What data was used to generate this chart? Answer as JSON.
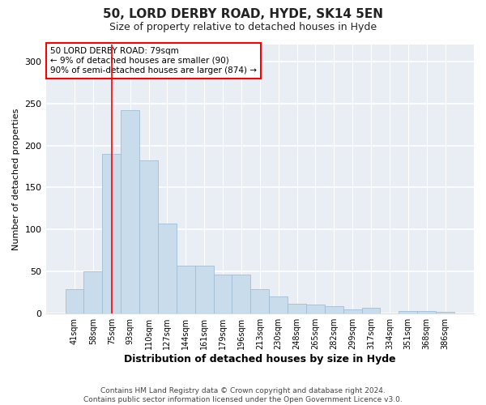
{
  "title1": "50, LORD DERBY ROAD, HYDE, SK14 5EN",
  "title2": "Size of property relative to detached houses in Hyde",
  "xlabel": "Distribution of detached houses by size in Hyde",
  "ylabel": "Number of detached properties",
  "footer1": "Contains HM Land Registry data © Crown copyright and database right 2024.",
  "footer2": "Contains public sector information licensed under the Open Government Licence v3.0.",
  "annotation_line1": "50 LORD DERBY ROAD: 79sqm",
  "annotation_line2": "← 9% of detached houses are smaller (90)",
  "annotation_line3": "90% of semi-detached houses are larger (874) →",
  "bar_color": "#c9dcec",
  "bar_edge_color": "#a0bdd4",
  "vline_color": "red",
  "vline_x": 2,
  "categories": [
    "41sqm",
    "58sqm",
    "75sqm",
    "93sqm",
    "110sqm",
    "127sqm",
    "144sqm",
    "161sqm",
    "179sqm",
    "196sqm",
    "213sqm",
    "230sqm",
    "248sqm",
    "265sqm",
    "282sqm",
    "299sqm",
    "317sqm",
    "334sqm",
    "351sqm",
    "368sqm",
    "386sqm"
  ],
  "values": [
    29,
    50,
    190,
    242,
    182,
    107,
    57,
    57,
    46,
    46,
    29,
    20,
    12,
    11,
    9,
    5,
    7,
    0,
    3,
    3,
    2
  ],
  "ylim": [
    0,
    320
  ],
  "yticks": [
    0,
    50,
    100,
    150,
    200,
    250,
    300
  ],
  "fig_background": "#ffffff",
  "plot_background": "#e8eef4",
  "grid_color": "#ffffff",
  "title1_fontsize": 11,
  "title2_fontsize": 9,
  "xlabel_fontsize": 9,
  "ylabel_fontsize": 8,
  "tick_fontsize": 7,
  "footer_fontsize": 6.5
}
